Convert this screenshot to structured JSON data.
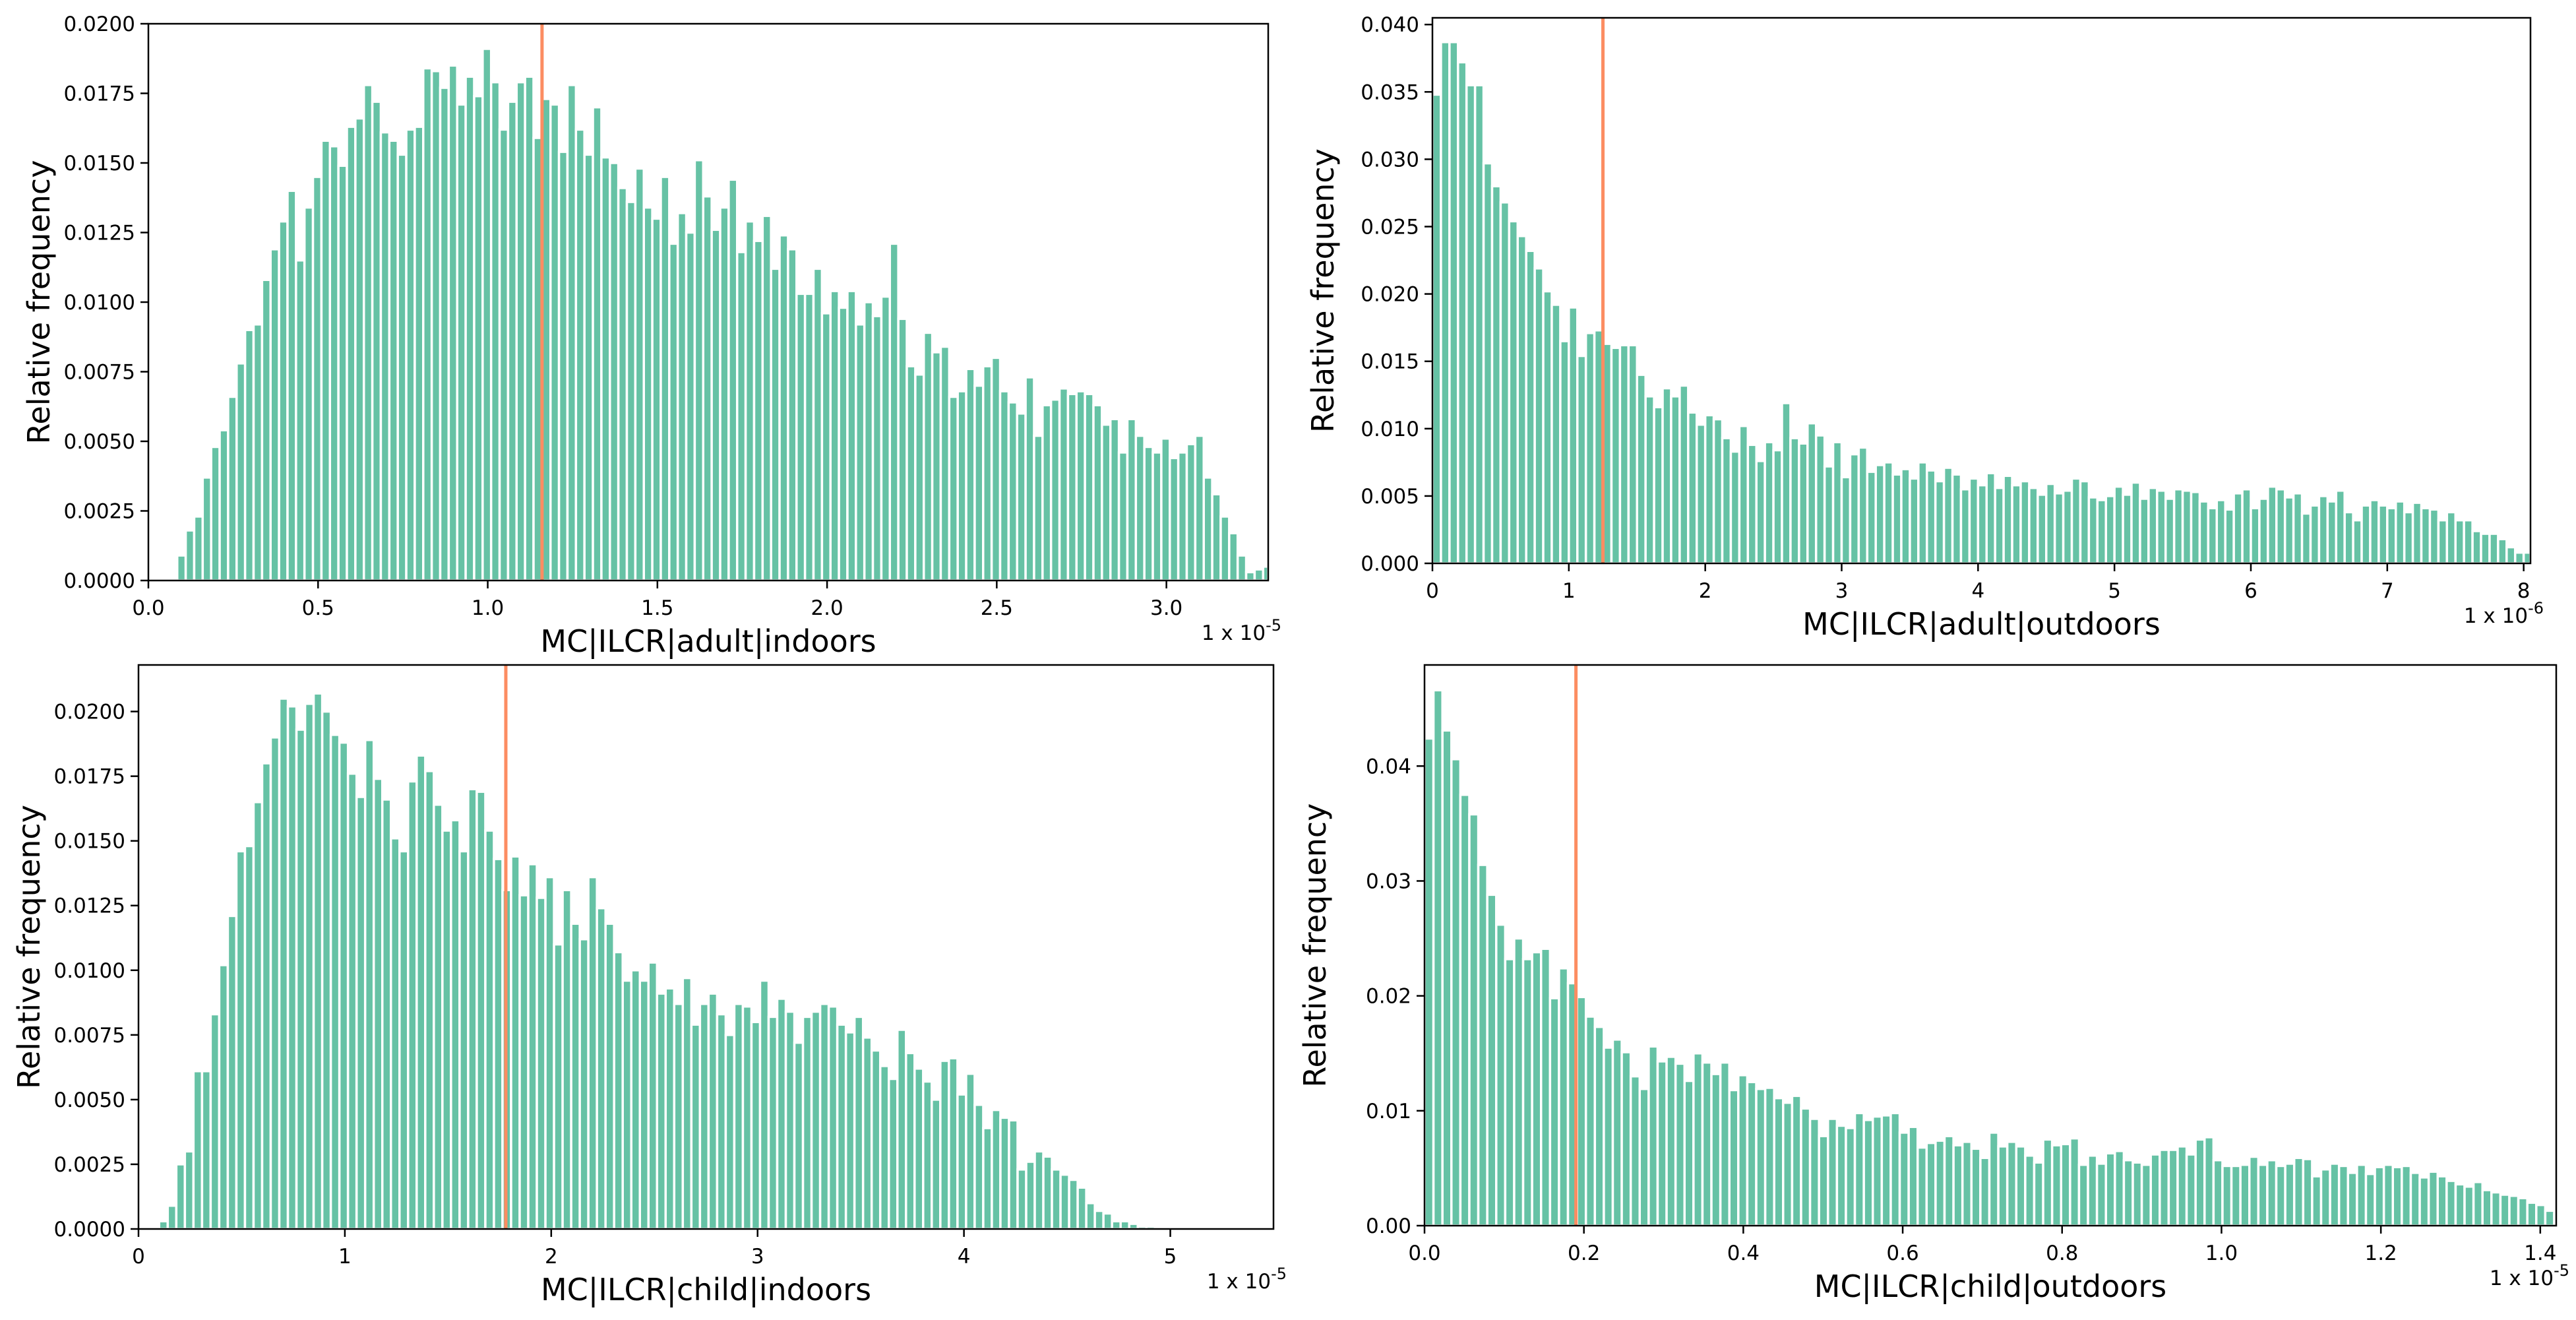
{
  "colors": {
    "bar": "#66c2a5",
    "bar_edge": "#ffffff",
    "mean_line": "#fc8d62",
    "axis": "#000000"
  },
  "chart_data": [
    {
      "type": "bar",
      "xlabel": "MC|ILCR|adult|indoors",
      "ylabel": "Relative frequency",
      "x_multiplier": "1 x 10",
      "x_exponent": "-5",
      "xlim": [
        0,
        3.3
      ],
      "ylim": [
        0,
        0.02
      ],
      "xticks": [
        0,
        0.5,
        1,
        1.5,
        2,
        2.5,
        3
      ],
      "xtick_labels": [
        "0.0",
        "0.5",
        "1.0",
        "1.5",
        "2.0",
        "2.5",
        "3.0"
      ],
      "yticks": [
        0,
        0.0025,
        0.005,
        0.0075,
        0.01,
        0.0125,
        0.015,
        0.0175,
        0.02
      ],
      "ytick_labels": [
        "0.0000",
        "0.0025",
        "0.0050",
        "0.0075",
        "0.0100",
        "0.0125",
        "0.0150",
        "0.0175",
        "0.0200"
      ],
      "bin_start": 0.085,
      "bin_width": 0.025,
      "values": [
        0.0009,
        0.0018,
        0.0023,
        0.0037,
        0.0048,
        0.0054,
        0.0066,
        0.0078,
        0.009,
        0.0092,
        0.0108,
        0.0119,
        0.0129,
        0.014,
        0.0115,
        0.0134,
        0.0145,
        0.0158,
        0.0156,
        0.0149,
        0.0163,
        0.0166,
        0.0178,
        0.0172,
        0.0161,
        0.0158,
        0.0153,
        0.0162,
        0.0163,
        0.0184,
        0.0183,
        0.0177,
        0.0185,
        0.0171,
        0.0181,
        0.0174,
        0.0191,
        0.0179,
        0.0162,
        0.0172,
        0.0179,
        0.0181,
        0.0159,
        0.0173,
        0.0171,
        0.0154,
        0.0178,
        0.0162,
        0.0153,
        0.017,
        0.0152,
        0.015,
        0.0141,
        0.0136,
        0.0148,
        0.0134,
        0.013,
        0.0145,
        0.0121,
        0.0132,
        0.0125,
        0.0151,
        0.0138,
        0.0126,
        0.0134,
        0.0144,
        0.0118,
        0.0129,
        0.0122,
        0.0131,
        0.0112,
        0.0124,
        0.0119,
        0.0103,
        0.0103,
        0.0112,
        0.0096,
        0.0104,
        0.0098,
        0.0104,
        0.0092,
        0.01,
        0.0095,
        0.0102,
        0.0121,
        0.0094,
        0.0077,
        0.0074,
        0.0089,
        0.0082,
        0.0084,
        0.0066,
        0.0068,
        0.0076,
        0.007,
        0.0077,
        0.008,
        0.0068,
        0.0064,
        0.006,
        0.0073,
        0.0052,
        0.0063,
        0.0065,
        0.0069,
        0.0067,
        0.0068,
        0.0067,
        0.0063,
        0.0056,
        0.0058,
        0.0046,
        0.0058,
        0.0052,
        0.0048,
        0.0046,
        0.0051,
        0.0044,
        0.0046,
        0.0049,
        0.0052,
        0.0037,
        0.0031,
        0.0023,
        0.0017,
        0.0009,
        0.0003,
        0.0004,
        0.0005,
        0.0003,
        0.0005,
        0.0003,
        0.0006
      ],
      "mean_line_x": 1.16
    },
    {
      "type": "bar",
      "xlabel": "MC|ILCR|adult|outdoors",
      "ylabel": "Relative frequency",
      "x_multiplier": "1 x 10",
      "x_exponent": "-6",
      "xlim": [
        0,
        8.05
      ],
      "ylim": [
        0,
        0.0405
      ],
      "xticks": [
        0,
        1,
        2,
        3,
        4,
        5,
        6,
        7,
        8
      ],
      "xtick_labels": [
        "0",
        "1",
        "2",
        "3",
        "4",
        "5",
        "6",
        "7",
        "8"
      ],
      "yticks": [
        0,
        0.005,
        0.01,
        0.015,
        0.02,
        0.025,
        0.03,
        0.035,
        0.04
      ],
      "ytick_labels": [
        "0.000",
        "0.005",
        "0.010",
        "0.015",
        "0.020",
        "0.025",
        "0.030",
        "0.035",
        "0.040"
      ],
      "bin_start": 0,
      "bin_width": 0.0625,
      "values": [
        0.0348,
        0.0387,
        0.0387,
        0.0372,
        0.0355,
        0.0355,
        0.0297,
        0.028,
        0.0268,
        0.0254,
        0.0243,
        0.0232,
        0.0219,
        0.0202,
        0.0192,
        0.0165,
        0.019,
        0.0154,
        0.0171,
        0.0173,
        0.0163,
        0.016,
        0.0162,
        0.0162,
        0.014,
        0.0124,
        0.0116,
        0.013,
        0.0124,
        0.0132,
        0.0112,
        0.0103,
        0.011,
        0.0107,
        0.0093,
        0.0083,
        0.0102,
        0.0088,
        0.0076,
        0.009,
        0.0084,
        0.0119,
        0.0093,
        0.0089,
        0.0104,
        0.0095,
        0.0072,
        0.009,
        0.0064,
        0.0081,
        0.0086,
        0.0068,
        0.0073,
        0.0075,
        0.0066,
        0.007,
        0.0063,
        0.0075,
        0.0069,
        0.0061,
        0.0071,
        0.0066,
        0.0055,
        0.0063,
        0.0058,
        0.0067,
        0.0056,
        0.0065,
        0.0058,
        0.0061,
        0.0056,
        0.0051,
        0.0059,
        0.0052,
        0.0054,
        0.0063,
        0.0061,
        0.0049,
        0.0047,
        0.005,
        0.0057,
        0.0051,
        0.006,
        0.0048,
        0.0056,
        0.0054,
        0.0048,
        0.0055,
        0.0054,
        0.0053,
        0.0046,
        0.0041,
        0.0047,
        0.004,
        0.0052,
        0.0055,
        0.0041,
        0.0048,
        0.0057,
        0.0055,
        0.0049,
        0.0052,
        0.0037,
        0.0043,
        0.005,
        0.0046,
        0.0054,
        0.0038,
        0.0032,
        0.0043,
        0.0047,
        0.0043,
        0.0041,
        0.0046,
        0.0038,
        0.0045,
        0.0041,
        0.004,
        0.0032,
        0.0038,
        0.0032,
        0.0032,
        0.0024,
        0.0022,
        0.0022,
        0.0018,
        0.0012,
        0.0008,
        0.0008,
        0.0006
      ],
      "mean_line_x": 1.25
    },
    {
      "type": "bar",
      "xlabel": "MC|ILCR|child|indoors",
      "ylabel": "Relative frequency",
      "x_multiplier": "1 x 10",
      "x_exponent": "-5",
      "xlim": [
        0,
        5.5
      ],
      "ylim": [
        0,
        0.0218
      ],
      "xticks": [
        0,
        1,
        2,
        3,
        4,
        5
      ],
      "xtick_labels": [
        "0",
        "1",
        "2",
        "3",
        "4",
        "5"
      ],
      "yticks": [
        0,
        0.0025,
        0.005,
        0.0075,
        0.01,
        0.0125,
        0.015,
        0.0175,
        0.02
      ],
      "ytick_labels": [
        "0.0000",
        "0.0025",
        "0.0050",
        "0.0075",
        "0.0100",
        "0.0125",
        "0.0150",
        "0.0175",
        "0.0200"
      ],
      "bin_start": 0.1,
      "bin_width": 0.0416,
      "values": [
        0.0003,
        0.0009,
        0.0025,
        0.003,
        0.0061,
        0.0061,
        0.0083,
        0.0102,
        0.0121,
        0.0146,
        0.0148,
        0.0165,
        0.018,
        0.019,
        0.0205,
        0.0202,
        0.0193,
        0.0203,
        0.0207,
        0.02,
        0.0191,
        0.0188,
        0.0176,
        0.0167,
        0.0189,
        0.0174,
        0.0166,
        0.0151,
        0.0146,
        0.0173,
        0.0183,
        0.0177,
        0.0164,
        0.0154,
        0.0158,
        0.0146,
        0.017,
        0.0169,
        0.0154,
        0.0143,
        0.0131,
        0.0144,
        0.0129,
        0.0141,
        0.0128,
        0.0136,
        0.011,
        0.0131,
        0.0118,
        0.0112,
        0.0136,
        0.0124,
        0.0118,
        0.0107,
        0.0096,
        0.01,
        0.0096,
        0.0103,
        0.0091,
        0.0093,
        0.0087,
        0.0097,
        0.0079,
        0.0087,
        0.0091,
        0.0083,
        0.0075,
        0.0087,
        0.0086,
        0.008,
        0.0096,
        0.0082,
        0.0089,
        0.0084,
        0.0072,
        0.0082,
        0.0084,
        0.0087,
        0.0086,
        0.0079,
        0.0076,
        0.0082,
        0.0074,
        0.0069,
        0.0063,
        0.0058,
        0.0077,
        0.0068,
        0.0062,
        0.0057,
        0.005,
        0.0065,
        0.0066,
        0.0052,
        0.006,
        0.0048,
        0.0039,
        0.0046,
        0.0043,
        0.0042,
        0.0023,
        0.0026,
        0.003,
        0.0028,
        0.0023,
        0.0021,
        0.0019,
        0.0016,
        0.001,
        0.0007,
        0.0006,
        0.0003,
        0.0003,
        0.0002,
        0.0001,
        0.0001
      ],
      "mean_line_x": 1.78
    },
    {
      "type": "bar",
      "xlabel": "MC|ILCR|child|outdoors",
      "ylabel": "Relative frequency",
      "x_multiplier": "1 x 10",
      "x_exponent": "-5",
      "xlim": [
        0,
        1.42
      ],
      "ylim": [
        0,
        0.0488
      ],
      "xticks": [
        0,
        0.2,
        0.4,
        0.6,
        0.8,
        1.0,
        1.2,
        1.4
      ],
      "xtick_labels": [
        "0.0",
        "0.2",
        "0.4",
        "0.6",
        "0.8",
        "1.0",
        "1.2",
        "1.4"
      ],
      "yticks": [
        0,
        0.01,
        0.02,
        0.03,
        0.04
      ],
      "ytick_labels": [
        "0.00",
        "0.01",
        "0.02",
        "0.03",
        "0.04"
      ],
      "bin_start": 0,
      "bin_width": 0.01125,
      "values": [
        0.0424,
        0.0466,
        0.0431,
        0.0406,
        0.0375,
        0.0358,
        0.0314,
        0.0288,
        0.0262,
        0.0232,
        0.025,
        0.0232,
        0.0238,
        0.0241,
        0.0198,
        0.0224,
        0.0211,
        0.0199,
        0.0182,
        0.0173,
        0.0155,
        0.0162,
        0.0151,
        0.013,
        0.0119,
        0.0156,
        0.0143,
        0.0147,
        0.0141,
        0.0126,
        0.015,
        0.0142,
        0.0132,
        0.0142,
        0.0118,
        0.0131,
        0.0125,
        0.0119,
        0.012,
        0.0111,
        0.0107,
        0.0113,
        0.0102,
        0.0093,
        0.0078,
        0.0093,
        0.0087,
        0.0085,
        0.0098,
        0.0092,
        0.0095,
        0.0096,
        0.0098,
        0.0081,
        0.0086,
        0.0068,
        0.0072,
        0.0074,
        0.0078,
        0.007,
        0.0073,
        0.0067,
        0.0059,
        0.0081,
        0.0069,
        0.0073,
        0.0069,
        0.0061,
        0.0055,
        0.0075,
        0.007,
        0.0071,
        0.0076,
        0.0053,
        0.0061,
        0.0054,
        0.0063,
        0.0065,
        0.0057,
        0.0055,
        0.0053,
        0.0062,
        0.0066,
        0.0066,
        0.0069,
        0.0062,
        0.0075,
        0.0077,
        0.0057,
        0.0052,
        0.0052,
        0.0053,
        0.006,
        0.0053,
        0.0057,
        0.0052,
        0.0054,
        0.0059,
        0.0058,
        0.0043,
        0.0049,
        0.0054,
        0.0052,
        0.0046,
        0.0053,
        0.0045,
        0.0051,
        0.0053,
        0.0051,
        0.0052,
        0.0046,
        0.0042,
        0.0047,
        0.0043,
        0.0039,
        0.0036,
        0.0034,
        0.0038,
        0.0031,
        0.0029,
        0.0027,
        0.0026,
        0.0024,
        0.002,
        0.0018,
        0.0013,
        0.001,
        0.0005,
        0.0003,
        0.0002
      ],
      "mean_line_x": 0.19
    }
  ]
}
